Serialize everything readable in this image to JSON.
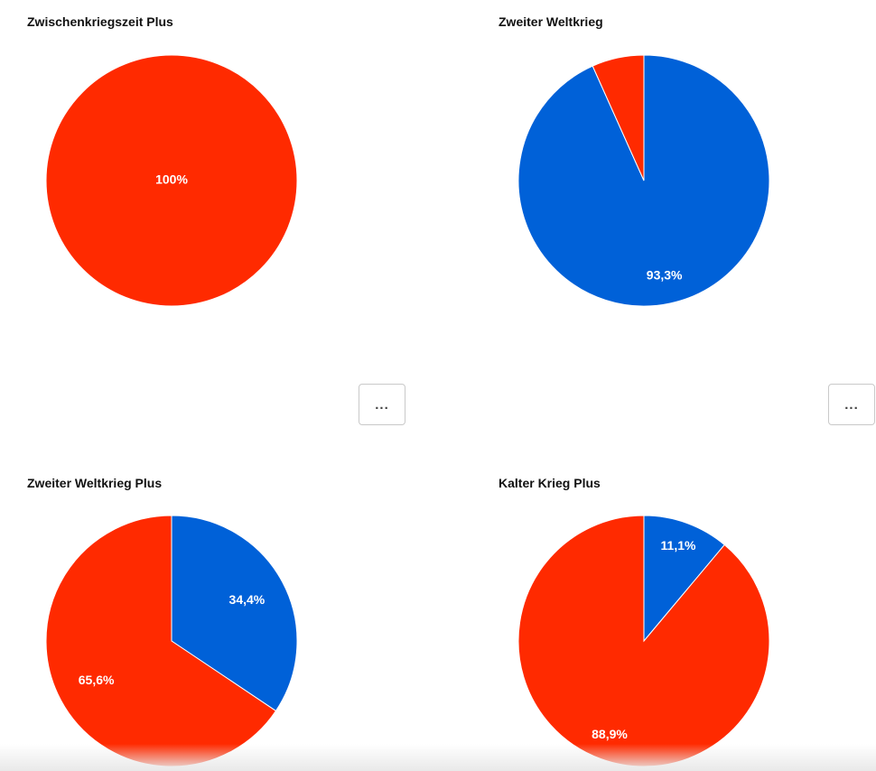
{
  "colors": {
    "red": "#ff2a00",
    "blue": "#0061d8"
  },
  "more_label": "...",
  "chart_data": [
    {
      "type": "pie",
      "title": "Zwischenkriegszeit Plus",
      "slices": [
        {
          "value": 100,
          "label": "100%",
          "color": "#ff2a00"
        }
      ]
    },
    {
      "type": "pie",
      "title": "Zweiter Weltkrieg",
      "slices": [
        {
          "value": 93.3,
          "label": "93,3%",
          "color": "#0061d8"
        },
        {
          "value": 6.7,
          "label": "",
          "color": "#ff2a00"
        }
      ]
    },
    {
      "type": "pie",
      "title": "Zweiter Weltkrieg Plus",
      "slices": [
        {
          "value": 34.4,
          "label": "34,4%",
          "color": "#0061d8"
        },
        {
          "value": 65.6,
          "label": "65,6%",
          "color": "#ff2a00"
        }
      ]
    },
    {
      "type": "pie",
      "title": "Kalter Krieg Plus",
      "slices": [
        {
          "value": 11.1,
          "label": "11,1%",
          "color": "#0061d8"
        },
        {
          "value": 88.9,
          "label": "88,9%",
          "color": "#ff2a00"
        }
      ]
    }
  ]
}
